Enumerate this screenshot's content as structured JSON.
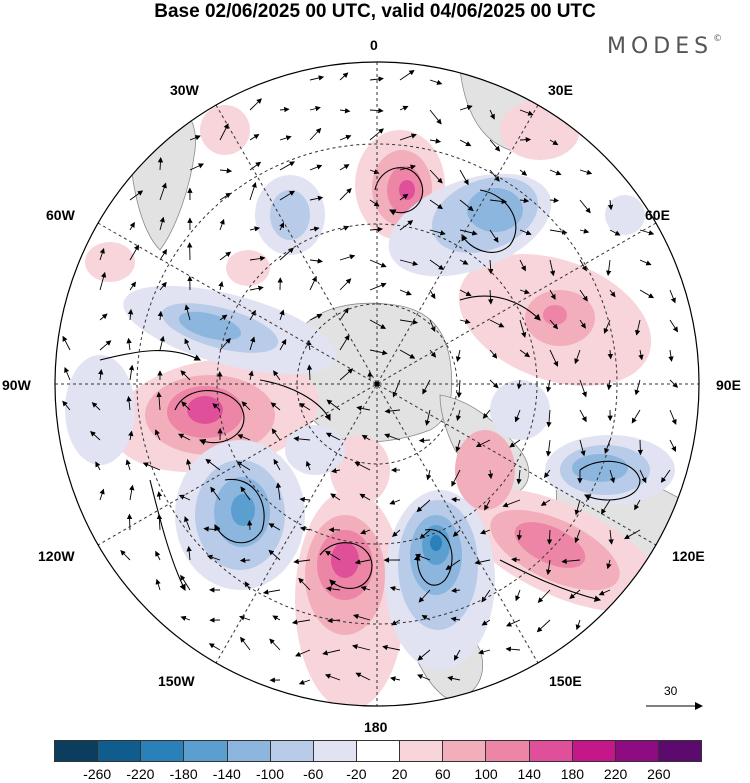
{
  "title": "Base 02/06/2025 00 UTC, valid 04/06/2025 00 UTC",
  "brand": "MODES",
  "brand_mark": "©",
  "lon_labels": {
    "l0": "0",
    "l30e": "30E",
    "l60e": "60E",
    "l90e": "90E",
    "l120e": "120E",
    "l150e": "150E",
    "l180": "180",
    "l150w": "150W",
    "l120w": "120W",
    "l90w": "90W",
    "l60w": "60W",
    "l30w": "30W"
  },
  "reference_vector": "30",
  "legend": {
    "ticks": [
      "-260",
      "-220",
      "-180",
      "-140",
      "-100",
      "-60",
      "-20",
      "20",
      "60",
      "100",
      "140",
      "180",
      "220",
      "260"
    ],
    "colors": [
      "#0b3d5f",
      "#115c8e",
      "#2a80b9",
      "#5b9fd0",
      "#8cb6de",
      "#b8cbe8",
      "#e1e3f2",
      "#ffffff",
      "#f7d5da",
      "#f2aebb",
      "#ec85a6",
      "#e0509a",
      "#c4188a",
      "#8e0b82",
      "#5c0a6e"
    ]
  }
}
